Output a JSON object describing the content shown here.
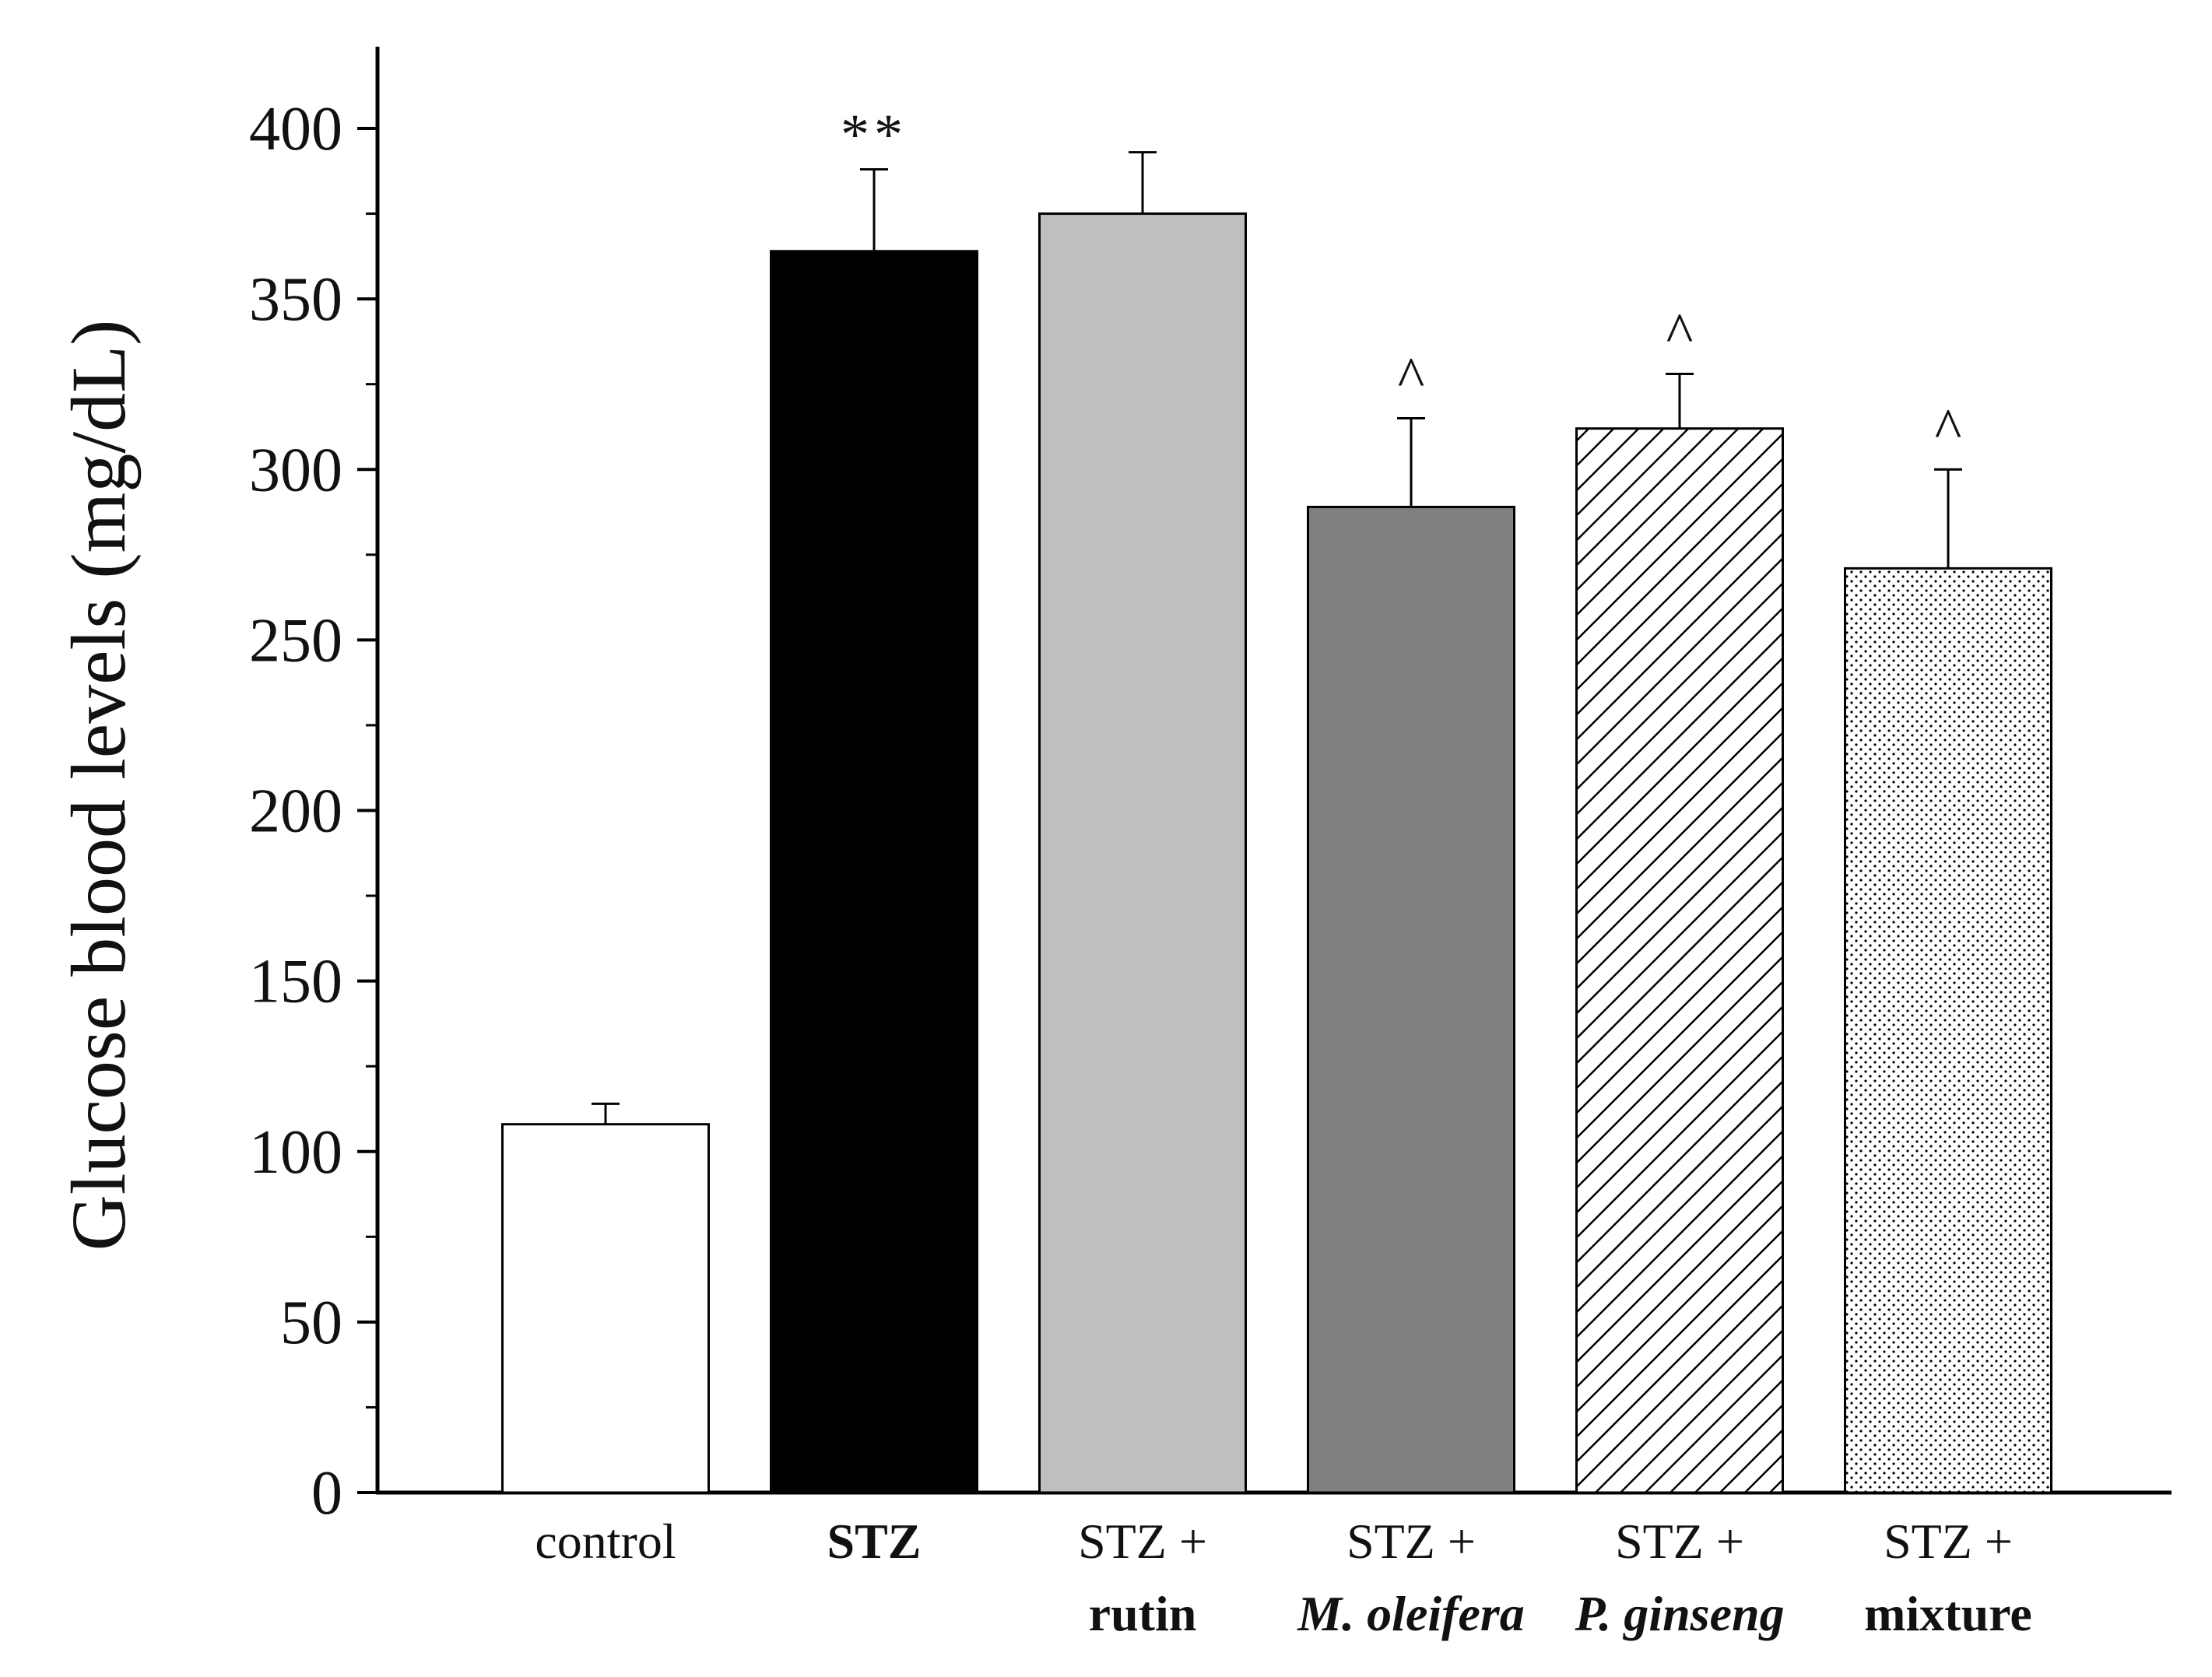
{
  "chart_data": {
    "type": "bar",
    "title": "",
    "xlabel": "",
    "ylabel": "Glucose blood levels (mg/dL)",
    "ylim": [
      0,
      420
    ],
    "yticks": [
      0,
      50,
      100,
      150,
      200,
      250,
      300,
      350,
      400
    ],
    "grid": false,
    "categories": [
      {
        "line1": "control",
        "line2": "",
        "line1_style": "normal",
        "line2_style": "normal"
      },
      {
        "line1": "STZ",
        "line2": "",
        "line1_style": "bold",
        "line2_style": "normal"
      },
      {
        "line1": "STZ +",
        "line2": "rutin",
        "line1_style": "normal",
        "line2_style": "bold"
      },
      {
        "line1": "STZ +",
        "line2": "M. oleifera",
        "line1_style": "normal",
        "line2_style": "bold-italic"
      },
      {
        "line1": "STZ +",
        "line2": "P. ginseng",
        "line1_style": "normal",
        "line2_style": "bold-italic"
      },
      {
        "line1": "STZ +",
        "line2": "mixture",
        "line1_style": "normal",
        "line2_style": "bold"
      }
    ],
    "values": [
      108,
      364,
      375,
      289,
      312,
      271
    ],
    "errors": [
      6,
      24,
      18,
      26,
      16,
      29
    ],
    "fills": [
      "white",
      "black",
      "light-gray",
      "gray",
      "hatch",
      "dots"
    ],
    "annotations": [
      "",
      "**",
      "",
      "^",
      "^",
      "^"
    ]
  },
  "colors": {
    "black": "#000000",
    "light_gray": "#bfbfbf",
    "gray": "#808080",
    "white": "#ffffff",
    "axis": "#000000"
  }
}
